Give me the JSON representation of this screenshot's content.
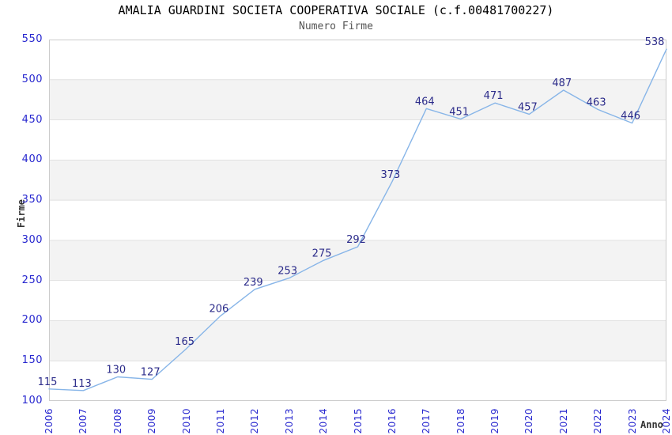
{
  "title": "AMALIA GUARDINI SOCIETA COOPERATIVA SOCIALE (c.f.00481700227)",
  "subtitle": "Numero Firme",
  "chart_data": {
    "type": "line",
    "title": "Numero Firme",
    "categories": [
      2006,
      2007,
      2008,
      2009,
      2010,
      2011,
      2012,
      2013,
      2014,
      2015,
      2016,
      2017,
      2018,
      2019,
      2020,
      2021,
      2022,
      2023,
      2024
    ],
    "values": [
      115,
      113,
      130,
      127,
      165,
      206,
      239,
      253,
      275,
      292,
      373,
      464,
      451,
      471,
      457,
      487,
      463,
      446,
      538
    ],
    "xlabel": "Anno",
    "ylabel": "Firme",
    "ylim": [
      100,
      550
    ],
    "ytick_step": 50,
    "grid": "horizontal",
    "banding": true,
    "legend_position": "none",
    "point_labels_visible": true
  },
  "colors": {
    "line": "#87b5e8",
    "point_label": "#2b2b8a",
    "tick_label": "#2727cf",
    "axis_title": "#333333",
    "band": "#ffffff",
    "band_alt": "#f3f3f3",
    "gridline": "#e1e1e1",
    "plot_border": "#cccccc",
    "title": "#000000",
    "subtitle": "#555555",
    "background": "#ffffff"
  }
}
